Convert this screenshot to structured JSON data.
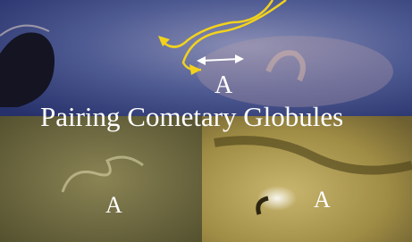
{
  "title": "Pairing Cometary Globules",
  "labels": [
    "A",
    "A",
    "A"
  ]
}
